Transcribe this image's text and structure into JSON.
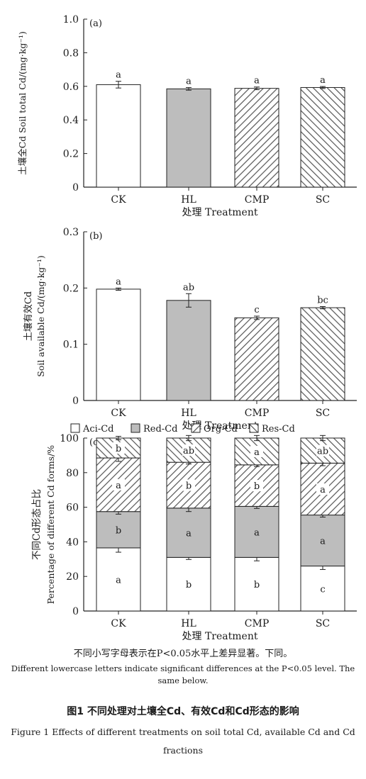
{
  "colors": {
    "CK": "#ffffff",
    "HL": "#bdbdbd",
    "hatch": "#555555",
    "axis": "#222222"
  },
  "chart_data": [
    {
      "type": "bar",
      "panel_label": "(a)",
      "categories": [
        "CK",
        "HL",
        "CMP",
        "SC"
      ],
      "values": [
        0.61,
        0.585,
        0.588,
        0.593
      ],
      "errors": [
        0.02,
        0.008,
        0.008,
        0.006
      ],
      "letters": [
        "a",
        "a",
        "a",
        "a"
      ],
      "fills": [
        "white",
        "gray",
        "hatch-right",
        "hatch-left"
      ],
      "ylim": [
        0,
        1.0
      ],
      "yticks": [
        "0",
        "0.2",
        "0.4",
        "0.6",
        "0.8",
        "1.0"
      ],
      "ylabel": "土壤全Cd Soil total Cd/(mg·kg⁻¹)",
      "xlabel": "处理 Treatment"
    },
    {
      "type": "bar",
      "panel_label": "(b)",
      "categories": [
        "CK",
        "HL",
        "CMP",
        "SC"
      ],
      "values": [
        0.198,
        0.178,
        0.147,
        0.165
      ],
      "errors": [
        0.002,
        0.012,
        0.003,
        0.002
      ],
      "letters": [
        "a",
        "ab",
        "c",
        "bc"
      ],
      "fills": [
        "white",
        "gray",
        "hatch-right",
        "hatch-left"
      ],
      "ylim": [
        0,
        0.3
      ],
      "yticks": [
        "0",
        "0.1",
        "0.2",
        "0.3"
      ],
      "ylabel_line1": "土壤有效Cd",
      "ylabel_line2": "Soil available Cd/(mg·kg⁻¹)",
      "xlabel": "处理 Treatment"
    },
    {
      "type": "stacked-bar",
      "panel_label": "(c)",
      "categories": [
        "CK",
        "HL",
        "CMP",
        "SC"
      ],
      "series": [
        {
          "name": "Aci-Cd",
          "fill": "white",
          "values": [
            36.5,
            31,
            31,
            26
          ],
          "errors": [
            2.5,
            1.2,
            2.0,
            2.0
          ],
          "letters": [
            "a",
            "b",
            "b",
            "c"
          ]
        },
        {
          "name": "Red-Cd",
          "fill": "gray",
          "values": [
            21,
            28.5,
            29.5,
            29.5
          ],
          "errors": [
            1.5,
            2.0,
            1.2,
            1.2
          ],
          "letters": [
            "b",
            "a",
            "a",
            "a"
          ]
        },
        {
          "name": "Org-Cd",
          "fill": "hatch-right",
          "values": [
            31,
            26.5,
            24,
            30
          ],
          "errors": [
            2.0,
            1.0,
            1.0,
            1.5
          ],
          "letters": [
            "a",
            "b",
            "b",
            "a"
          ]
        },
        {
          "name": "Res-Cd",
          "fill": "hatch-left",
          "values": [
            11.5,
            14,
            15.5,
            14.5
          ],
          "errors": [
            1.0,
            1.5,
            1.5,
            1.5
          ],
          "letters": [
            "b",
            "ab",
            "a",
            "ab"
          ]
        }
      ],
      "ylim": [
        0,
        100
      ],
      "yticks": [
        "0",
        "20",
        "40",
        "60",
        "80",
        "100"
      ],
      "ylabel_line1": "不同Cd形态占比",
      "ylabel_line2": "Percentage of different Cd forms/%",
      "xlabel": "处理 Treatment",
      "legend_position": "top"
    }
  ],
  "notes": {
    "cn": "不同小写字母表示在P<0.05水平上差异显著。下同。",
    "en": "Different lowercase letters indicate significant differences at the P<0.05 level. The same below."
  },
  "figure": {
    "caption_cn": "图1  不同处理对土壤全Cd、有效Cd和Cd形态的影响",
    "caption_en": "Figure 1  Effects of different treatments on soil total Cd, available Cd and Cd fractions"
  }
}
